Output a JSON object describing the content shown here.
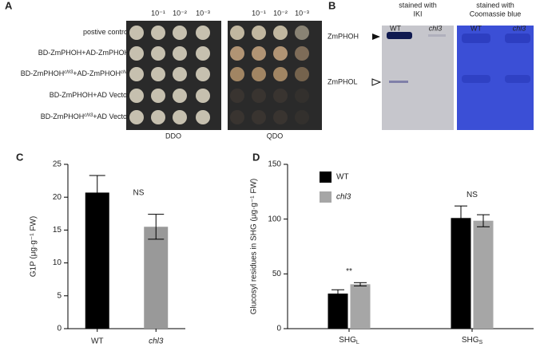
{
  "panels": {
    "A": {
      "label": "A",
      "dilutions": [
        "10⁻¹",
        "10⁻²",
        "10⁻³"
      ],
      "rows": [
        [
          "postive control"
        ],
        [
          "BD-ZmPHOH+AD-ZmPHOH"
        ],
        [
          "BD-ZmPHOH",
          "chl3",
          "+AD-ZmPHOH",
          "chl3"
        ],
        [
          "BD-ZmPHOH+AD Vector"
        ],
        [
          "BD-ZmPHOH",
          "chl3",
          "+AD Vector"
        ]
      ],
      "plates": [
        "DDO",
        "QDO"
      ]
    },
    "B": {
      "label": "B",
      "stains": [
        [
          "stained with",
          "IKI"
        ],
        [
          "stained with",
          "Coomassie blue"
        ]
      ],
      "lanes": [
        "WT",
        "chl3"
      ],
      "bands": [
        "ZmPHOH",
        "ZmPHOL"
      ]
    }
  },
  "chart_data": [
    {
      "type": "bar",
      "panel_label": "C",
      "ylabel": "G1P (μg·g⁻¹ FW)",
      "categories": [
        "WT",
        "chl3"
      ],
      "values": [
        20.7,
        15.5
      ],
      "errors": [
        2.6,
        1.9
      ],
      "colors": [
        "#000000",
        "#999999"
      ],
      "ylim": [
        0,
        25
      ],
      "yticks": [
        0,
        5,
        10,
        15,
        20,
        25
      ],
      "annotations": [
        "NS"
      ]
    },
    {
      "type": "grouped_bar",
      "panel_label": "D",
      "ylabel": "Glucosyl residues in SHG (μg·g⁻¹ FW)",
      "categories": [
        "SHG",
        "SHG"
      ],
      "category_subscripts": [
        "L",
        "S"
      ],
      "series": [
        {
          "name": "WT",
          "color": "#000000",
          "values": [
            32,
            101
          ],
          "errors": [
            3.5,
            11
          ]
        },
        {
          "name": "chl3",
          "color": "#a6a6a6",
          "values": [
            40.5,
            98.5
          ],
          "errors": [
            1.5,
            5.5
          ]
        }
      ],
      "ylim": [
        0,
        150
      ],
      "yticks": [
        0,
        50,
        100,
        150
      ],
      "annotations": [
        "**",
        "NS"
      ],
      "legend": "upper-left"
    }
  ]
}
